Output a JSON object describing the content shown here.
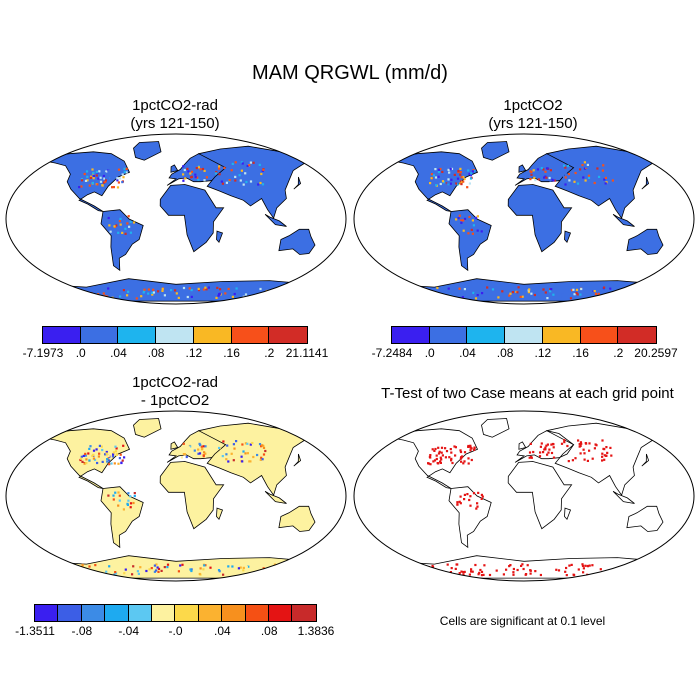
{
  "title": "MAM QRGWL (mm/d)",
  "panels": {
    "a": {
      "title_line1": "1pctCO2-rad",
      "title_line2": "(yrs 121-150)"
    },
    "b": {
      "title_line1": "1pctCO2",
      "title_line2": "(yrs 121-150)"
    },
    "c": {
      "title_line1": "1pctCO2-rad",
      "title_line2": "- 1pctCO2"
    },
    "d": {
      "title_line1": "T-Test of two Case means at each grid point",
      "note": "Cells are significant at 0.1 level"
    }
  },
  "colorbars": {
    "a": {
      "colors": [
        "#3a1ff0",
        "#3c6fe3",
        "#1eb4ee",
        "#bfe4f2",
        "#f9b824",
        "#f7501a",
        "#d22c26"
      ],
      "labels": [
        "-7.1973",
        ".0",
        ".04",
        ".08",
        ".12",
        ".16",
        ".2",
        "21.1141"
      ]
    },
    "b": {
      "colors": [
        "#3a1ff0",
        "#3c6fe3",
        "#1eb4ee",
        "#bfe4f2",
        "#f9b824",
        "#f7501a",
        "#d22c26"
      ],
      "labels": [
        "-7.2484",
        ".0",
        ".04",
        ".08",
        ".12",
        ".16",
        ".2",
        "20.2597"
      ]
    },
    "c": {
      "colors": [
        "#3a1ff0",
        "#3c5ee6",
        "#3c8be6",
        "#1eaaf0",
        "#5cc8f2",
        "#fdf2a0",
        "#fcd94a",
        "#fbb230",
        "#f7901e",
        "#f55014",
        "#e41414",
        "#c82a2a"
      ],
      "labels": [
        "-1.3511",
        "-.08",
        "-.04",
        "-.0",
        ".04",
        ".08",
        "1.3836"
      ]
    }
  },
  "map_colors": {
    "ocean": "#ffffff",
    "land_a": "#3c6fe3",
    "land_c": "#fdf2a0",
    "signif": "#e41414"
  }
}
